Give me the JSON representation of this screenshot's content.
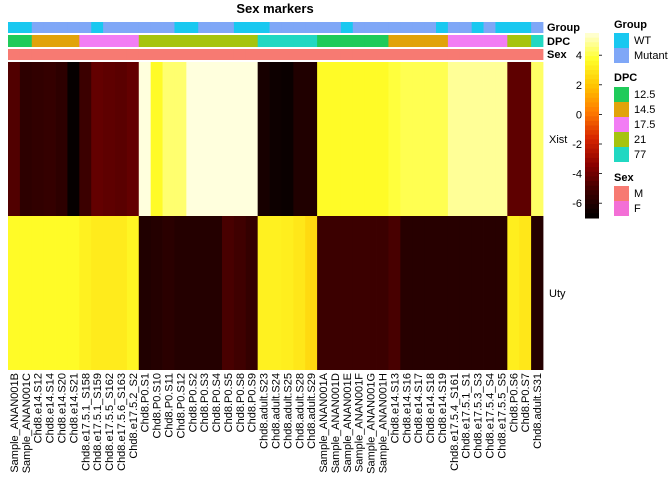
{
  "chart_data": {
    "type": "heatmap",
    "title": "Sex markers",
    "rows": [
      "Xist",
      "Uty"
    ],
    "columns": [
      "Sample_ANAN001B",
      "Sample_ANAN001C",
      "Chd8.e14.S12",
      "Chd8.e14.S14",
      "Chd8.e14.S20",
      "Chd8.e14.S21",
      "Chd8.e17.5.1_S158",
      "Chd8.e17.5.1_S159",
      "Chd8.e17.5.5_S162",
      "Chd8.e17.5.6_S163",
      "Chd8.e17.5.2_S2",
      "Chd8.P0.S1",
      "Chd8.P0.S10",
      "Chd8.P0.S11",
      "Chd8.P0.S12",
      "Chd8.P0.S2",
      "Chd8.P0.S3",
      "Chd8.P0.S4",
      "Chd8.P0.S5",
      "Chd8.P0.S8",
      "Chd8.P0.S9",
      "Chd8.adult.S23",
      "Chd8.adult.S24",
      "Chd8.adult.S25",
      "Chd8.adult.S28",
      "Chd8.adult.S29",
      "Sample_ANAN001A",
      "Sample_ANAN001D",
      "Sample_ANAN001E",
      "Sample_ANAN001F",
      "Sample_ANAN001G",
      "Sample_ANAN001H",
      "Chd8.e14.S13",
      "Chd8.e14.S16",
      "Chd8.e14.S17",
      "Chd8.e14.S18",
      "Chd8.e14.S19",
      "Chd8.e17.5.4_S161",
      "Chd8.e17.5.1_S1",
      "Chd8.e17.5.3_S3",
      "Chd8.e17.5.4_S4",
      "Chd8.e17.5.5_S5",
      "Chd8.P0.S6",
      "Chd8.P0.S7",
      "Chd8.adult.S31"
    ],
    "values": [
      [
        -4.7,
        -5.6,
        -5.5,
        -5.4,
        -5.6,
        -6.8,
        -5.2,
        -4.3,
        -4.4,
        -4.5,
        -4.3,
        5.5,
        3.6,
        4.4,
        4.4,
        5.5,
        5.5,
        5.5,
        5.5,
        5.5,
        5.5,
        -6.3,
        -6.6,
        -6.7,
        -6.0,
        -6.0,
        3.6,
        3.6,
        3.6,
        3.6,
        3.6,
        3.6,
        3.9,
        4.1,
        4.1,
        4.1,
        4.1,
        4.8,
        4.8,
        4.8,
        4.8,
        4.8,
        -4.4,
        -4.4,
        4.3
      ],
      [
        3.6,
        3.6,
        3.6,
        3.6,
        3.6,
        3.6,
        3.3,
        3.1,
        3.1,
        3.1,
        3.4,
        -6.0,
        -5.9,
        -5.7,
        -5.9,
        -5.9,
        -5.9,
        -5.9,
        -4.9,
        -5.1,
        -5.4,
        3.3,
        3.3,
        3.2,
        3.0,
        2.6,
        -5.2,
        -5.2,
        -5.2,
        -5.2,
        -5.2,
        -5.2,
        -4.9,
        -5.8,
        -5.8,
        -5.8,
        -5.8,
        -5.8,
        -5.8,
        -5.8,
        -5.8,
        -5.8,
        3.2,
        3.0,
        -5.9
      ]
    ],
    "annotations": {
      "Group": {
        "label": "Group",
        "values": [
          "WT",
          "WT",
          "Mutant",
          "Mutant",
          "Mutant",
          "Mutant",
          "Mutant",
          "WT",
          "Mutant",
          "Mutant",
          "Mutant",
          "Mutant",
          "Mutant",
          "Mutant",
          "WT",
          "WT",
          "Mutant",
          "Mutant",
          "Mutant",
          "WT",
          "WT",
          "WT",
          "Mutant",
          "Mutant",
          "Mutant",
          "Mutant",
          "Mutant",
          "Mutant",
          "WT",
          "Mutant",
          "Mutant",
          "Mutant",
          "Mutant",
          "Mutant",
          "Mutant",
          "Mutant",
          "WT",
          "Mutant",
          "Mutant",
          "WT",
          "Mutant",
          "WT",
          "WT",
          "WT",
          "Mutant"
        ],
        "levels": [
          "WT",
          "Mutant"
        ],
        "colors": {
          "WT": "#19C8F0",
          "Mutant": "#7FA7F7"
        }
      },
      "DPC": {
        "label": "DPC",
        "values": [
          "12.5",
          "12.5",
          "14.5",
          "14.5",
          "14.5",
          "14.5",
          "17.5",
          "17.5",
          "17.5",
          "17.5",
          "17.5",
          "21",
          "21",
          "21",
          "21",
          "21",
          "21",
          "21",
          "21",
          "21",
          "21",
          "77",
          "77",
          "77",
          "77",
          "77",
          "12.5",
          "12.5",
          "12.5",
          "12.5",
          "12.5",
          "12.5",
          "14.5",
          "14.5",
          "14.5",
          "14.5",
          "14.5",
          "17.5",
          "17.5",
          "17.5",
          "17.5",
          "17.5",
          "21",
          "21",
          "77"
        ],
        "levels": [
          "12.5",
          "14.5",
          "17.5",
          "21",
          "77"
        ],
        "colors": {
          "12.5": "#1FCB5A",
          "14.5": "#E1A30A",
          "17.5": "#F27DF4",
          "21": "#A6C40E",
          "77": "#21D8C2"
        }
      },
      "Sex": {
        "label": "Sex",
        "values": [
          "M",
          "M",
          "M",
          "M",
          "M",
          "M",
          "M",
          "M",
          "M",
          "M",
          "M",
          "M",
          "M",
          "M",
          "M",
          "M",
          "M",
          "M",
          "M",
          "M",
          "M",
          "M",
          "M",
          "M",
          "M",
          "M",
          "M",
          "M",
          "M",
          "M",
          "M",
          "M",
          "M",
          "M",
          "M",
          "M",
          "M",
          "M",
          "M",
          "M",
          "M",
          "M",
          "M",
          "M",
          "M"
        ],
        "levels": [
          "M",
          "F"
        ],
        "colors": {
          "M": "#F77A72",
          "F": "#F36FD6"
        }
      }
    },
    "colorbar": {
      "ticks": [
        4,
        2,
        0,
        -2,
        -4,
        -6
      ],
      "range": [
        -7,
        5.5
      ],
      "stops": [
        "#000000",
        "#3a0000",
        "#8a0000",
        "#d62400",
        "#ff7a00",
        "#ffc400",
        "#ffff2a",
        "#ffffdd"
      ]
    }
  }
}
